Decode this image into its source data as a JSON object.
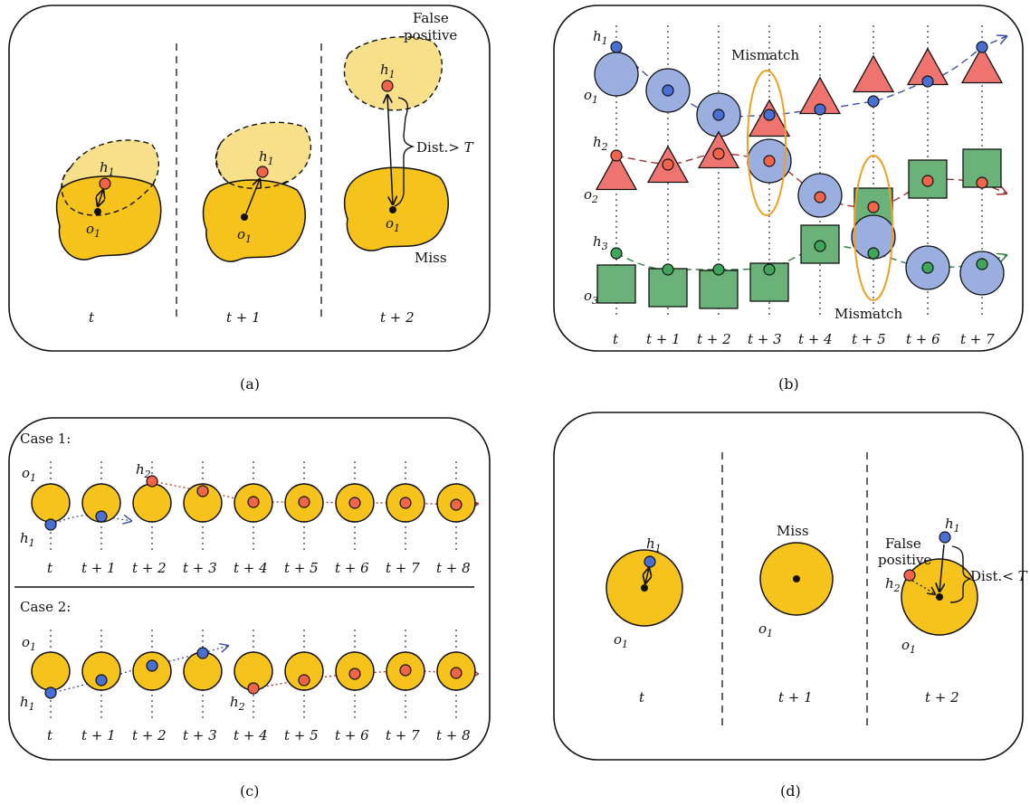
{
  "captions": [
    "(a)",
    "(b)",
    "(c)",
    "(d)"
  ],
  "panel_a": {
    "times": [
      "t",
      "t + 1",
      "t + 2"
    ],
    "obj": "o",
    "hyp": "h",
    "sub1": "1",
    "false_positive_1": "False",
    "false_positive_2": "positive",
    "dist": "Dist.> ",
    "thr": "T",
    "miss": "Miss"
  },
  "panel_b": {
    "times": [
      "t",
      "t + 1",
      "t + 2",
      "t + 3",
      "t + 4",
      "t + 5",
      "t + 6",
      "t + 7"
    ],
    "mismatch_top": "Mismatch",
    "mismatch_bottom": "Mismatch",
    "h": "h",
    "o": "o",
    "s1": "1",
    "s2": "2",
    "s3": "3"
  },
  "panel_c": {
    "case1": "Case 1:",
    "case2": "Case 2:",
    "times": [
      "t",
      "t + 1",
      "t + 2",
      "t + 3",
      "t + 4",
      "t + 5",
      "t + 6",
      "t + 7",
      "t + 8"
    ],
    "h": "h",
    "o": "o",
    "s1": "1",
    "s2": "2"
  },
  "panel_d": {
    "times": [
      "t",
      "t + 1",
      "t + 2"
    ],
    "miss": "Miss",
    "false_positive_1": "False",
    "false_positive_2": "positive",
    "dist": "Dist.< ",
    "thr": "T",
    "h": "h",
    "o": "o",
    "s1": "1",
    "s2": "2"
  },
  "colors": {
    "object": "#f5c31c",
    "false_positive": "#f8e08a",
    "red": "#f0644a",
    "blue": "#4a6fd2",
    "green": "#3fa55b",
    "ellipse": "#f0a020"
  }
}
